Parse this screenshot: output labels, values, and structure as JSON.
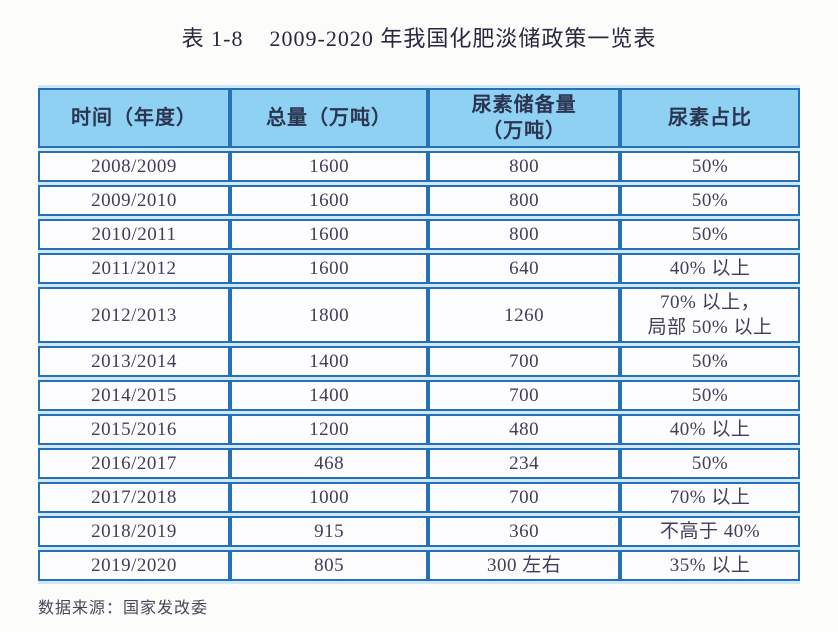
{
  "title": {
    "label": "表 1-8",
    "text": "2009-2020 年我国化肥淡储政策一览表"
  },
  "table": {
    "headers": [
      "时间（年度）",
      "总量（万吨）",
      "尿素储备量\n（万吨）",
      "尿素占比"
    ],
    "column_names": [
      "year",
      "total",
      "urea-reserve",
      "urea-ratio"
    ],
    "rows": [
      [
        "2008/2009",
        "1600",
        "800",
        "50%"
      ],
      [
        "2009/2010",
        "1600",
        "800",
        "50%"
      ],
      [
        "2010/2011",
        "1600",
        "800",
        "50%"
      ],
      [
        "2011/2012",
        "1600",
        "640",
        "40% 以上"
      ],
      [
        "2012/2013",
        "1800",
        "1260",
        "70% 以上，\n局部 50% 以上"
      ],
      [
        "2013/2014",
        "1400",
        "700",
        "50%"
      ],
      [
        "2014/2015",
        "1400",
        "700",
        "50%"
      ],
      [
        "2015/2016",
        "1200",
        "480",
        "40% 以上"
      ],
      [
        "2016/2017",
        "468",
        "234",
        "50%"
      ],
      [
        "2017/2018",
        "1000",
        "700",
        "70% 以上"
      ],
      [
        "2018/2019",
        "915",
        "360",
        "不高于 40%"
      ],
      [
        "2019/2020",
        "805",
        "300 左右",
        "35% 以上"
      ]
    ]
  },
  "footer": {
    "source": "数据来源：国家发改委"
  },
  "colors": {
    "border_blue": "#2471b8",
    "header_background": "#8fd1f2",
    "row_background": "#fdfdff",
    "cell_text": "#433c5a",
    "title_text": "#28283f"
  }
}
